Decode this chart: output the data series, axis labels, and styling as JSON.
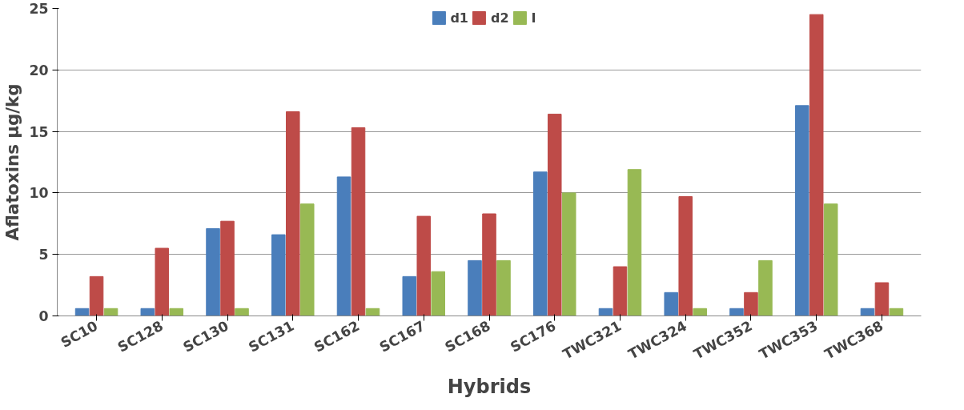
{
  "chart_data": {
    "type": "bar",
    "xlabel": "Hybrids",
    "ylabel": "Aflatoxins µg/kg",
    "categories": [
      "SC10",
      "SC128",
      "SC130",
      "SC131",
      "SC162",
      "SC167",
      "SC168",
      "SC176",
      "TWC321",
      "TWC324",
      "TWC352",
      "TWC353",
      "TWC368"
    ],
    "series": [
      {
        "name": "d1",
        "color": "#4a7ebb",
        "values": [
          0.6,
          0.6,
          7.1,
          6.6,
          11.3,
          3.2,
          4.5,
          11.7,
          0.6,
          1.9,
          0.6,
          17.1,
          0.6
        ]
      },
      {
        "name": "d2",
        "color": "#be4b48",
        "values": [
          3.2,
          5.5,
          7.7,
          16.6,
          15.3,
          8.1,
          8.3,
          16.4,
          4.0,
          9.7,
          1.9,
          24.5,
          2.7
        ]
      },
      {
        "name": "I",
        "color": "#98b954",
        "values": [
          0.6,
          0.6,
          0.6,
          9.1,
          0.6,
          3.6,
          4.5,
          10.0,
          11.9,
          0.6,
          4.5,
          9.1,
          0.6
        ]
      }
    ],
    "ylim": [
      0,
      25
    ],
    "yticks": [
      0,
      5,
      10,
      15,
      20,
      25
    ],
    "grid": "y",
    "legend": "top"
  }
}
